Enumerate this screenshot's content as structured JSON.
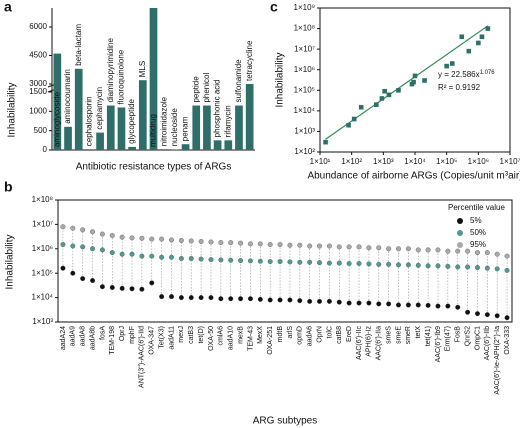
{
  "chart_data": [
    {
      "type": "bar",
      "panel": "a",
      "xlabel": "Antibiotic resistance types of ARGs",
      "ylabel": "Inhabilability",
      "color": "#2f6e69",
      "categories": [
        "aminoglycoside",
        "aminocoumarin",
        "beta-lactam",
        "cephalosporin",
        "cephamycin",
        "diaminopyrimidine",
        "fluoroquinolone",
        "glycopeptide",
        "MLS",
        "multidrug",
        "nitroimidazole",
        "nucleoside",
        "penam",
        "peptide",
        "phenicol",
        "phosphonic acid",
        "rifamycin",
        "sulfonamide",
        "tetracycline"
      ],
      "values": [
        4600,
        600,
        3800,
        20,
        450,
        1150,
        1100,
        80,
        3200,
        7000,
        20,
        15,
        150,
        1150,
        1150,
        250,
        250,
        1150,
        3000
      ],
      "ylim": [
        0,
        7000
      ],
      "axis_break": [
        1500,
        3000
      ],
      "yticks": [
        0,
        500,
        1000,
        1500,
        3000,
        4500,
        6000
      ]
    },
    {
      "type": "dot",
      "panel": "b",
      "xlabel": "ARG subtypes",
      "ylabel": "Inhabilability",
      "legend_title": "Percentile value",
      "legend": "top-right",
      "log_y": true,
      "categories": [
        "aadA24",
        "aadA9",
        "aadA8",
        "aadA8b",
        "fosA",
        "TEM-198",
        "OprJ",
        "mphF",
        "ANT(3'')-AAC(6')-IId",
        "OXA-347",
        "Tet(X3)",
        "aadA11",
        "mexJ",
        "catB3",
        "tet(D)",
        "OXA-50",
        "cmlA6",
        "aadA10",
        "mexB",
        "TEM-43",
        "MexX",
        "OXA-251",
        "mdtB",
        "arlS",
        "opmD",
        "aadA6",
        "OprN",
        "tolC",
        "catB8",
        "EreD",
        "AAC(6')-IIc",
        "APH(6)-Iz",
        "AAC(6')-IIa",
        "smeS",
        "smeE",
        "smeR",
        "tetX",
        "tet(41)",
        "AAC(6')-Ib9",
        "Erm(47)",
        "FosB",
        "QnrS2",
        "OmpC1",
        "AAC(6')-IIb",
        "AAC(6')-Ie-APH(2'')-Ia",
        "OXA-333"
      ],
      "series": [
        {
          "name": "5%",
          "color": "#111111",
          "values": [
            160000,
            100000,
            60000,
            50000,
            28000,
            26000,
            24000,
            23000,
            22000,
            40000,
            11000,
            11000,
            10000,
            10000,
            10000,
            10000,
            9000,
            9000,
            9000,
            9000,
            8500,
            8000,
            8000,
            8000,
            7500,
            7000,
            7000,
            7000,
            6500,
            6000,
            6000,
            6000,
            5500,
            5500,
            5000,
            5000,
            5000,
            4800,
            4500,
            4500,
            4000,
            2500,
            2200,
            2000,
            1800,
            1500
          ]
        },
        {
          "name": "50%",
          "color": "#4f9a93",
          "values": [
            1500000,
            1300000,
            1200000,
            1000000,
            900000,
            700000,
            600000,
            600000,
            500000,
            500000,
            450000,
            450000,
            400000,
            400000,
            380000,
            360000,
            350000,
            340000,
            330000,
            320000,
            310000,
            300000,
            300000,
            290000,
            280000,
            280000,
            270000,
            260000,
            260000,
            250000,
            250000,
            240000,
            230000,
            230000,
            220000,
            220000,
            210000,
            200000,
            200000,
            190000,
            180000,
            180000,
            170000,
            160000,
            150000,
            130000
          ]
        },
        {
          "name": "95%",
          "color": "#a9a9a9",
          "values": [
            8000000,
            7000000,
            6000000,
            5000000,
            4000000,
            3500000,
            3000000,
            2800000,
            2700000,
            2500000,
            2500000,
            2300000,
            2200000,
            2100000,
            2000000,
            1900000,
            1800000,
            1800000,
            1700000,
            1600000,
            1600000,
            1500000,
            1500000,
            1400000,
            1400000,
            1300000,
            1300000,
            1300000,
            1200000,
            1200000,
            1200000,
            1100000,
            1100000,
            1000000,
            1000000,
            1000000,
            900000,
            900000,
            900000,
            800000,
            800000,
            800000,
            700000,
            700000,
            600000,
            500000
          ]
        }
      ],
      "ylim": [
        1000,
        100000000
      ],
      "yticks": [
        {
          "value": 1000,
          "label": "1×10³"
        },
        {
          "value": 10000,
          "label": "1×10⁴"
        },
        {
          "value": 100000,
          "label": "1×10⁵"
        },
        {
          "value": 1000000,
          "label": "1×10⁶"
        },
        {
          "value": 10000000,
          "label": "1×10⁷"
        },
        {
          "value": 100000000,
          "label": "1×10⁸"
        }
      ]
    },
    {
      "type": "scatter",
      "panel": "c",
      "xlabel": "Abundance of airborne ARGs (Copies/unit m³air)",
      "ylabel": "Inhabilability",
      "log_x": true,
      "log_y": true,
      "color": "#2f6e69",
      "fit_color": "#2e8b57",
      "x": [
        15,
        80,
        120,
        200,
        600,
        900,
        1100,
        1500,
        3000,
        8000,
        9000,
        10000,
        20000,
        100000,
        150000,
        300000,
        500000,
        1000000,
        1300000,
        2000000
      ],
      "values": [
        300,
        2000,
        4000,
        15000,
        20000,
        40000,
        90000,
        60000,
        100000,
        200000,
        250000,
        500000,
        300000,
        1500000,
        2000000,
        40000000,
        8000000,
        20000000,
        40000000,
        100000000
      ],
      "equation": {
        "prefix": "y = ",
        "coefficient": 22.586,
        "variable": "x",
        "exponent": 1.076
      },
      "r2_label": "R² = 0.9192",
      "xlim": [
        10,
        10000000
      ],
      "ylim": [
        100,
        1000000000
      ],
      "xticks": [
        {
          "value": 10,
          "label": "1×10¹"
        },
        {
          "value": 100,
          "label": "1×10²"
        },
        {
          "value": 1000,
          "label": "1×10³"
        },
        {
          "value": 10000,
          "label": "1×10⁴"
        },
        {
          "value": 100000,
          "label": "1×10⁵"
        },
        {
          "value": 1000000,
          "label": "1×10⁶"
        },
        {
          "value": 10000000,
          "label": "1×10⁷"
        }
      ],
      "yticks": [
        {
          "value": 100,
          "label": "1×10²"
        },
        {
          "value": 1000,
          "label": "1×10³"
        },
        {
          "value": 10000,
          "label": "1×10⁴"
        },
        {
          "value": 100000,
          "label": "1×10⁵"
        },
        {
          "value": 1000000,
          "label": "1×10⁶"
        },
        {
          "value": 10000000,
          "label": "1×10⁷"
        },
        {
          "value": 100000000,
          "label": "1×10⁸"
        },
        {
          "value": 1000000000,
          "label": "1×10⁹"
        }
      ]
    }
  ]
}
